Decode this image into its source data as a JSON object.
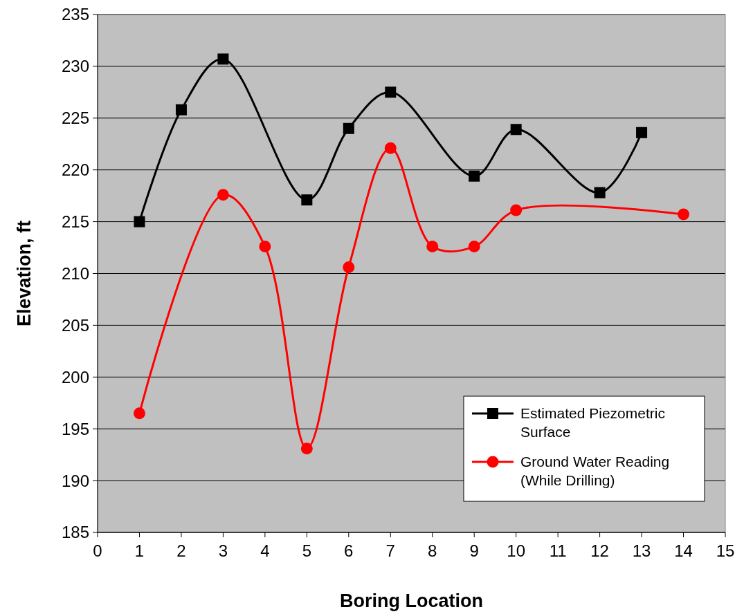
{
  "chart_data": {
    "type": "line",
    "xlabel": "Boring Location",
    "ylabel": "Elevation, ft",
    "xlim": [
      0,
      15
    ],
    "xticks": [
      0,
      1,
      2,
      3,
      4,
      5,
      6,
      7,
      8,
      9,
      10,
      11,
      12,
      13,
      14,
      15
    ],
    "ylim": [
      185,
      235
    ],
    "yticks": [
      185,
      190,
      195,
      200,
      205,
      210,
      215,
      220,
      225,
      230,
      235
    ],
    "grid": "y",
    "legend": "bottom right",
    "line_style": "solid",
    "series": [
      {
        "name": "Estimated Piezometric Surface",
        "color": "#000000",
        "marker": "square",
        "x": [
          1,
          2,
          3,
          5,
          6,
          7,
          9,
          10,
          12,
          13
        ],
        "values": [
          215.0,
          225.8,
          230.7,
          217.1,
          224.0,
          227.5,
          219.4,
          223.9,
          217.8,
          223.6
        ]
      },
      {
        "name": "Ground Water Reading (While Drilling)",
        "color": "#ff0000",
        "marker": "circle",
        "x": [
          1,
          3,
          4,
          5,
          6,
          7,
          8,
          9,
          10,
          14
        ],
        "values": [
          196.5,
          217.6,
          212.6,
          193.1,
          210.6,
          222.1,
          212.6,
          212.6,
          216.1,
          215.7
        ]
      }
    ]
  }
}
